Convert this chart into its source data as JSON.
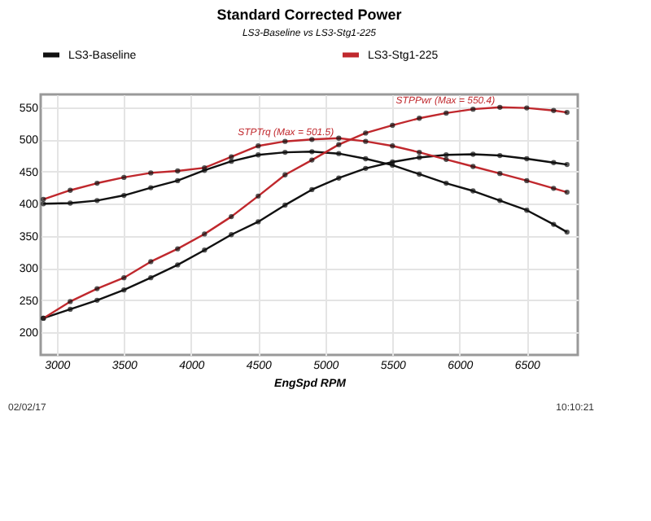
{
  "chart_data": {
    "type": "line",
    "title": "Standard Corrected Power",
    "subtitle": "LS3-Baseline vs LS3-Stg1-225",
    "xlabel": "EngSpd RPM",
    "x": [
      2900,
      3100,
      3300,
      3500,
      3700,
      3900,
      4100,
      4300,
      4500,
      4700,
      4900,
      5100,
      5300,
      5500,
      5700,
      5900,
      6100,
      6300,
      6500,
      6700,
      6800
    ],
    "xlim": [
      2880,
      6880
    ],
    "xticks": [
      3000,
      3500,
      4000,
      4500,
      5000,
      5500,
      6000,
      6500
    ],
    "ylim": [
      165,
      570
    ],
    "yticks": [
      200,
      250,
      300,
      350,
      400,
      450,
      500,
      550
    ],
    "series": [
      {
        "name": "LS3-Baseline",
        "color": "#111111",
        "values": [
          400,
          401,
          405,
          413,
          425,
          436,
          452,
          466,
          476,
          480,
          481,
          478,
          470,
          460,
          446,
          432,
          420,
          405,
          390,
          368,
          356
        ]
      },
      {
        "color": "#111111",
        "values": [
          222,
          236,
          250,
          266,
          285,
          305,
          328,
          352,
          372,
          398,
          422,
          440,
          455,
          465,
          472,
          476,
          477,
          475,
          470,
          464,
          461
        ]
      },
      {
        "name": "LS3-Stg1-225",
        "color": "#c0282d",
        "values": [
          407,
          421,
          432,
          441,
          448,
          451,
          456,
          473,
          490,
          497,
          500,
          502,
          497,
          490,
          480,
          469,
          458,
          447,
          436,
          424,
          418
        ]
      },
      {
        "color": "#c0282d",
        "values": [
          222,
          248,
          268,
          285,
          310,
          330,
          353,
          380,
          412,
          445,
          468,
          492,
          510,
          522,
          533,
          541,
          547,
          550,
          549,
          545,
          542
        ]
      }
    ],
    "annotations": [
      {
        "text": "STPTrq (Max = 501.5)",
        "x": 5100,
        "y": 501.5
      },
      {
        "text": "STPPwr (Max = 550.4)",
        "x": 6300,
        "y": 550.4
      },
      "02/02/17",
      "10:10:21"
    ],
    "grid": true,
    "legend": "top",
    "marker": "circle",
    "line_style": "solid"
  }
}
